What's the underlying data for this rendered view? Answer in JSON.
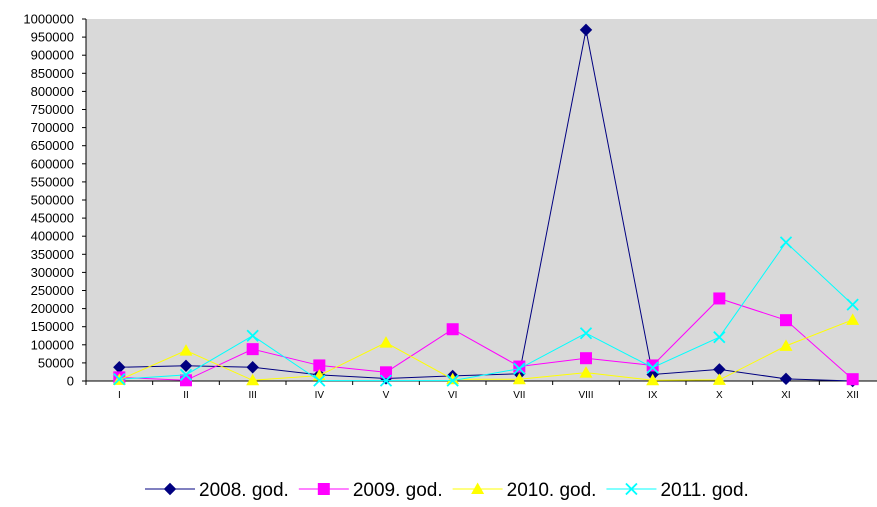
{
  "chart_data": {
    "type": "line",
    "categories": [
      "I",
      "II",
      "III",
      "IV",
      "V",
      "VI",
      "VII",
      "VIII",
      "IX",
      "X",
      "XI",
      "XII"
    ],
    "ylim": [
      0,
      1000000
    ],
    "ytick_step": 50000,
    "yticks": [
      "0",
      "50000",
      "100000",
      "150000",
      "200000",
      "250000",
      "300000",
      "350000",
      "400000",
      "450000",
      "500000",
      "550000",
      "600000",
      "650000",
      "700000",
      "750000",
      "800000",
      "850000",
      "900000",
      "950000",
      "1000000"
    ],
    "grid": false,
    "plot_background": "#d9d9d9",
    "legend_position": "bottom",
    "series": [
      {
        "name": "2008. god.",
        "color": "#000080",
        "marker": "diamond",
        "values": [
          38000,
          42000,
          38000,
          17000,
          7000,
          14000,
          20000,
          970000,
          18000,
          32000,
          6000,
          0
        ]
      },
      {
        "name": "2009. god.",
        "color": "#ff00ff",
        "marker": "square",
        "values": [
          10000,
          2000,
          88000,
          43000,
          24000,
          143000,
          40000,
          63000,
          43000,
          228000,
          168000,
          5000
        ]
      },
      {
        "name": "2010. god.",
        "color": "#ffff00",
        "marker": "triangle",
        "values": [
          3000,
          84000,
          2000,
          15000,
          106000,
          5000,
          5000,
          23000,
          2000,
          3000,
          97000,
          169000
        ]
      },
      {
        "name": "2011. god.",
        "color": "#00ffff",
        "marker": "x",
        "values": [
          5000,
          17000,
          125000,
          1000,
          1000,
          1000,
          34000,
          132000,
          37000,
          121000,
          383000,
          211000
        ]
      }
    ]
  }
}
